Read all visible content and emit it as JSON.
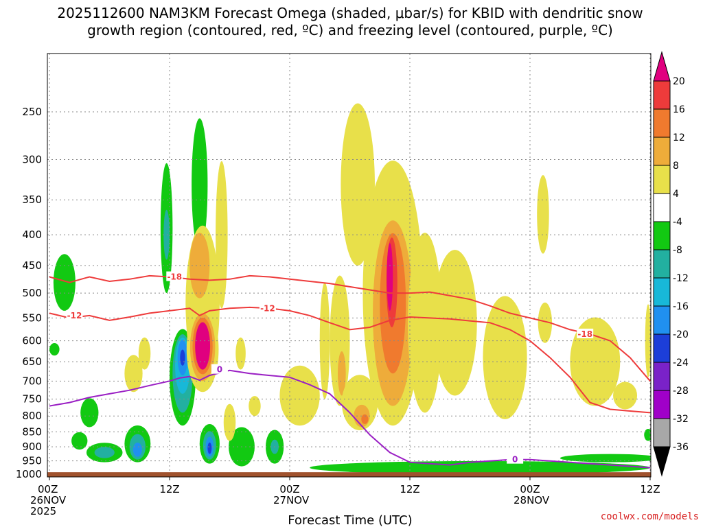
{
  "chart_data": {
    "type": "heatmap",
    "title_line1": "2025112600 NAM3KM Forecast Omega (shaded, μbar/s) for KBID with dendritic snow",
    "title_line2": "growth region (contoured, red, ºC) and freezing level (contoured, purple, ºC)",
    "xlabel": "Forecast Time (UTC)",
    "credit": "coolwx.com/models",
    "x_ticks": [
      {
        "h": 0,
        "lines": [
          "00Z",
          "26NOV",
          "2025"
        ]
      },
      {
        "h": 12,
        "lines": [
          "12Z"
        ]
      },
      {
        "h": 24,
        "lines": [
          "00Z",
          "27NOV"
        ]
      },
      {
        "h": 36,
        "lines": [
          "12Z"
        ]
      },
      {
        "h": 48,
        "lines": [
          "00Z",
          "28NOV"
        ]
      },
      {
        "h": 60,
        "lines": [
          "12Z"
        ]
      }
    ],
    "xlim": [
      0,
      60
    ],
    "y_ticks": [
      250,
      300,
      350,
      400,
      450,
      500,
      550,
      600,
      650,
      700,
      750,
      800,
      850,
      900,
      950,
      1000
    ],
    "ylim_hPa": [
      1010,
      200
    ],
    "y_scale": "log-pressure",
    "colorbar": {
      "labels": [
        "20",
        "16",
        "12",
        "8",
        "4",
        "-4",
        "-8",
        "-12",
        "-16",
        "-20",
        "-24",
        "-28",
        "-32",
        "-36"
      ],
      "bands": [
        {
          "range": "> 20",
          "color": "#e0007f"
        },
        {
          "range": "16 to 20",
          "color": "#ee3b3b"
        },
        {
          "range": "12 to 16",
          "color": "#f07a2e"
        },
        {
          "range": "8 to 12",
          "color": "#eeac3a"
        },
        {
          "range": "4 to 8",
          "color": "#e8e04a"
        },
        {
          "range": "-4 to 4",
          "color": "#ffffff"
        },
        {
          "range": "-8 to -4",
          "color": "#12c912"
        },
        {
          "range": "-12 to -8",
          "color": "#22b0a0"
        },
        {
          "range": "-16 to -12",
          "color": "#18b8d8"
        },
        {
          "range": "-20 to -16",
          "color": "#2090f0"
        },
        {
          "range": "-24 to -20",
          "color": "#1c3ed8"
        },
        {
          "range": "-28 to -24",
          "color": "#7a22c8"
        },
        {
          "range": "-32 to -28",
          "color": "#a000c8"
        },
        {
          "range": "-36 to -32",
          "color": "#a8a8a8"
        },
        {
          "range": "< -36",
          "color": "#000000"
        }
      ]
    },
    "omega_regions": [
      {
        "h": 1.5,
        "p": 480,
        "w": 1.1,
        "dp": 55,
        "value": -6
      },
      {
        "h": 0.5,
        "p": 620,
        "w": 0.5,
        "dp": 15,
        "value": -6
      },
      {
        "h": 4.0,
        "p": 790,
        "w": 0.9,
        "dp": 45,
        "value": -6
      },
      {
        "h": 3.0,
        "p": 880,
        "w": 0.8,
        "dp": 30,
        "value": -6
      },
      {
        "h": 5.5,
        "p": 920,
        "w": 1.8,
        "dp": 35,
        "value": -6
      },
      {
        "h": 5.5,
        "p": 920,
        "w": 1.0,
        "dp": 20,
        "value": -10
      },
      {
        "h": 8.8,
        "p": 890,
        "w": 1.3,
        "dp": 65,
        "value": -6
      },
      {
        "h": 8.8,
        "p": 900,
        "w": 0.8,
        "dp": 45,
        "value": -10
      },
      {
        "h": 8.8,
        "p": 910,
        "w": 0.45,
        "dp": 25,
        "value": -18
      },
      {
        "h": 11.7,
        "p": 390,
        "w": 0.6,
        "dp": 110,
        "value": -6
      },
      {
        "h": 11.7,
        "p": 400,
        "w": 0.3,
        "dp": 40,
        "value": -10
      },
      {
        "h": 15.0,
        "p": 330,
        "w": 0.8,
        "dp": 95,
        "value": -6
      },
      {
        "h": 13.3,
        "p": 690,
        "w": 1.3,
        "dp": 140,
        "value": -6
      },
      {
        "h": 13.3,
        "p": 680,
        "w": 1.0,
        "dp": 110,
        "value": -10
      },
      {
        "h": 13.3,
        "p": 660,
        "w": 0.75,
        "dp": 75,
        "value": -14
      },
      {
        "h": 13.3,
        "p": 640,
        "w": 0.5,
        "dp": 45,
        "value": -18
      },
      {
        "h": 13.3,
        "p": 640,
        "w": 0.25,
        "dp": 20,
        "value": -22
      },
      {
        "h": 16.0,
        "p": 890,
        "w": 1.0,
        "dp": 70,
        "value": -6
      },
      {
        "h": 16.0,
        "p": 895,
        "w": 0.65,
        "dp": 50,
        "value": -10
      },
      {
        "h": 16.0,
        "p": 900,
        "w": 0.4,
        "dp": 35,
        "value": -18
      },
      {
        "h": 16.0,
        "p": 905,
        "w": 0.2,
        "dp": 20,
        "value": -22
      },
      {
        "h": 19.2,
        "p": 900,
        "w": 1.3,
        "dp": 70,
        "value": -6
      },
      {
        "h": 22.5,
        "p": 900,
        "w": 0.9,
        "dp": 60,
        "value": -6
      },
      {
        "h": 22.5,
        "p": 900,
        "w": 0.4,
        "dp": 25,
        "value": -10
      },
      {
        "h": 43.0,
        "p": 975,
        "w": 17.0,
        "dp": 25,
        "value": -6
      },
      {
        "h": 56.0,
        "p": 940,
        "w": 5.0,
        "dp": 15,
        "value": -6
      },
      {
        "h": 59.8,
        "p": 860,
        "w": 0.4,
        "dp": 20,
        "value": -6
      },
      {
        "h": 15.3,
        "p": 520,
        "w": 1.7,
        "dp": 180,
        "value": 6
      },
      {
        "h": 15.0,
        "p": 450,
        "w": 1.0,
        "dp": 60,
        "value": 10
      },
      {
        "h": 17.2,
        "p": 400,
        "w": 0.6,
        "dp": 130,
        "value": 6
      },
      {
        "h": 15.3,
        "p": 620,
        "w": 1.6,
        "dp": 110,
        "value": 6
      },
      {
        "h": 15.3,
        "p": 615,
        "w": 1.25,
        "dp": 85,
        "value": 10
      },
      {
        "h": 15.3,
        "p": 612,
        "w": 1.0,
        "dp": 70,
        "value": 14
      },
      {
        "h": 15.3,
        "p": 612,
        "w": 0.75,
        "dp": 58,
        "value": 22
      },
      {
        "h": 8.4,
        "p": 680,
        "w": 0.9,
        "dp": 50,
        "value": 6
      },
      {
        "h": 9.5,
        "p": 630,
        "w": 0.6,
        "dp": 40,
        "value": 6
      },
      {
        "h": 18.0,
        "p": 820,
        "w": 0.6,
        "dp": 60,
        "value": 6
      },
      {
        "h": 19.1,
        "p": 630,
        "w": 0.5,
        "dp": 40,
        "value": 6
      },
      {
        "h": 20.5,
        "p": 770,
        "w": 0.6,
        "dp": 30,
        "value": 6
      },
      {
        "h": 25.0,
        "p": 740,
        "w": 2.0,
        "dp": 90,
        "value": 6
      },
      {
        "h": 27.5,
        "p": 600,
        "w": 0.5,
        "dp": 150,
        "value": 6
      },
      {
        "h": 29.0,
        "p": 600,
        "w": 1.0,
        "dp": 170,
        "value": 6
      },
      {
        "h": 29.2,
        "p": 680,
        "w": 0.4,
        "dp": 60,
        "value": 10
      },
      {
        "h": 31.0,
        "p": 760,
        "w": 1.8,
        "dp": 85,
        "value": 6
      },
      {
        "h": 31.2,
        "p": 800,
        "w": 0.8,
        "dp": 35,
        "value": 10
      },
      {
        "h": 31.5,
        "p": 810,
        "w": 0.35,
        "dp": 15,
        "value": 14
      },
      {
        "h": 30.8,
        "p": 330,
        "w": 1.7,
        "dp": 120,
        "value": 6
      },
      {
        "h": 34.3,
        "p": 500,
        "w": 3.0,
        "dp": 330,
        "value": 6
      },
      {
        "h": 34.3,
        "p": 540,
        "w": 2.0,
        "dp": 230,
        "value": 10
      },
      {
        "h": 34.3,
        "p": 520,
        "w": 1.3,
        "dp": 160,
        "value": 14
      },
      {
        "h": 34.2,
        "p": 480,
        "w": 0.55,
        "dp": 90,
        "value": 18
      },
      {
        "h": 34.0,
        "p": 470,
        "w": 0.3,
        "dp": 65,
        "value": 22
      },
      {
        "h": 37.5,
        "p": 560,
        "w": 1.7,
        "dp": 230,
        "value": 6
      },
      {
        "h": 40.5,
        "p": 560,
        "w": 2.2,
        "dp": 180,
        "value": 6
      },
      {
        "h": 45.5,
        "p": 640,
        "w": 2.2,
        "dp": 170,
        "value": 6
      },
      {
        "h": 49.3,
        "p": 370,
        "w": 0.6,
        "dp": 60,
        "value": 6
      },
      {
        "h": 49.5,
        "p": 560,
        "w": 0.7,
        "dp": 45,
        "value": 6
      },
      {
        "h": 54.5,
        "p": 650,
        "w": 2.5,
        "dp": 120,
        "value": 6
      },
      {
        "h": 57.5,
        "p": 740,
        "w": 1.2,
        "dp": 40,
        "value": 6
      },
      {
        "h": 59.8,
        "p": 600,
        "w": 0.3,
        "dp": 90,
        "value": 6
      }
    ],
    "contours": [
      {
        "name": "-18",
        "color": "#ee3b3b",
        "label": "-18",
        "label_at": [
          [
            12.5,
            470
          ],
          [
            53.5,
            585
          ]
        ],
        "points": [
          [
            0,
            470
          ],
          [
            2,
            480
          ],
          [
            4,
            470
          ],
          [
            6,
            478
          ],
          [
            8,
            474
          ],
          [
            10,
            468
          ],
          [
            12,
            470
          ],
          [
            14,
            474
          ],
          [
            16,
            476
          ],
          [
            18,
            474
          ],
          [
            20,
            468
          ],
          [
            22,
            470
          ],
          [
            24,
            474
          ],
          [
            26,
            478
          ],
          [
            28,
            482
          ],
          [
            30,
            488
          ],
          [
            32,
            494
          ],
          [
            34,
            500
          ],
          [
            36,
            500
          ],
          [
            38,
            498
          ],
          [
            40,
            505
          ],
          [
            42,
            512
          ],
          [
            44,
            525
          ],
          [
            46,
            540
          ],
          [
            48,
            550
          ],
          [
            50,
            560
          ],
          [
            52,
            575
          ],
          [
            54,
            585
          ],
          [
            56,
            600
          ],
          [
            58,
            640
          ],
          [
            60,
            700
          ]
        ]
      },
      {
        "name": "-12",
        "color": "#ee3b3b",
        "label": "-12",
        "label_at": [
          [
            2.5,
            545
          ],
          [
            21.8,
            530
          ]
        ],
        "points": [
          [
            0,
            540
          ],
          [
            2,
            550
          ],
          [
            4,
            545
          ],
          [
            6,
            555
          ],
          [
            8,
            548
          ],
          [
            10,
            540
          ],
          [
            12,
            535
          ],
          [
            14,
            530
          ],
          [
            15,
            545
          ],
          [
            16,
            535
          ],
          [
            18,
            530
          ],
          [
            20,
            528
          ],
          [
            22,
            530
          ],
          [
            24,
            535
          ],
          [
            26,
            545
          ],
          [
            28,
            560
          ],
          [
            30,
            575
          ],
          [
            32,
            570
          ],
          [
            34,
            555
          ],
          [
            36,
            548
          ],
          [
            38,
            550
          ],
          [
            40,
            552
          ],
          [
            42,
            556
          ],
          [
            44,
            560
          ],
          [
            46,
            575
          ],
          [
            48,
            600
          ],
          [
            50,
            640
          ],
          [
            52,
            690
          ],
          [
            54,
            760
          ],
          [
            56,
            780
          ],
          [
            58,
            785
          ],
          [
            60,
            790
          ]
        ]
      },
      {
        "name": "0",
        "color": "#9a1fc4",
        "label": "0",
        "label_at": [
          [
            17.0,
            670
          ],
          [
            46.5,
            945
          ]
        ],
        "points": [
          [
            0,
            770
          ],
          [
            2,
            760
          ],
          [
            4,
            745
          ],
          [
            6,
            735
          ],
          [
            8,
            725
          ],
          [
            10,
            712
          ],
          [
            12,
            700
          ],
          [
            13,
            692
          ],
          [
            14,
            688
          ],
          [
            15,
            698
          ],
          [
            16,
            685
          ],
          [
            18,
            672
          ],
          [
            20,
            680
          ],
          [
            22,
            685
          ],
          [
            24,
            690
          ],
          [
            26,
            710
          ],
          [
            28,
            735
          ],
          [
            30,
            790
          ],
          [
            32,
            860
          ],
          [
            34,
            920
          ],
          [
            36,
            955
          ],
          [
            38,
            960
          ],
          [
            40,
            965
          ],
          [
            42,
            955
          ],
          [
            44,
            950
          ],
          [
            46,
            945
          ],
          [
            48,
            945
          ],
          [
            50,
            950
          ],
          [
            52,
            955
          ],
          [
            54,
            960
          ],
          [
            56,
            965
          ],
          [
            58,
            970
          ],
          [
            60,
            975
          ]
        ]
      }
    ],
    "terrain_top_hPa": 992,
    "colors": {
      "grid": "#888888",
      "terrain": "#a0522d",
      "red_contour": "#ee3b3b",
      "purple_contour": "#9a1fc4",
      "credit": "#d82020"
    }
  }
}
